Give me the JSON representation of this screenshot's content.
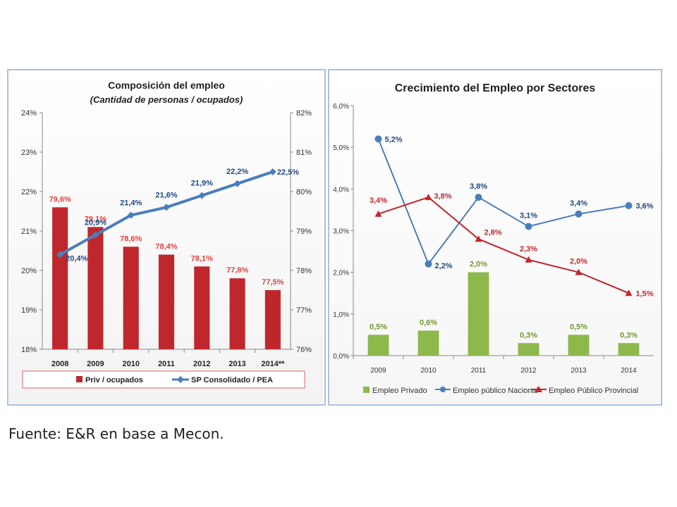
{
  "source_note": "Fuente: E&R en base a Mecon.",
  "colors": {
    "red": "#c0272d",
    "blue": "#4a7ebb",
    "blue_dark": "#1f497d",
    "green": "#8db84a",
    "dark_red": "#c0272d"
  },
  "chart_data": [
    {
      "type": "bar",
      "title": "Composición del empleo",
      "subtitle": "(Cantidad de personas / ocupados)",
      "categories": [
        "2008",
        "2009",
        "2010",
        "2011",
        "2012",
        "2013",
        "2014**"
      ],
      "y_left_ticks": [
        "18%",
        "19%",
        "20%",
        "21%",
        "22%",
        "23%",
        "24%"
      ],
      "y_left_range": [
        18,
        24
      ],
      "y_right_ticks": [
        "76%",
        "77%",
        "78%",
        "79%",
        "80%",
        "81%",
        "82%"
      ],
      "y_right_range": [
        76,
        82
      ],
      "series": [
        {
          "name": "Priv / ocupados",
          "type": "bar",
          "axis": "right",
          "color": "#c0272d",
          "values": [
            79.6,
            79.1,
            78.6,
            78.4,
            78.1,
            77.8,
            77.5
          ],
          "labels": [
            "79,6%",
            "79,1%",
            "78,6%",
            "78,4%",
            "78,1%",
            "77,8%",
            "77,5%"
          ]
        },
        {
          "name": "SP Consolidado  / PEA",
          "type": "line",
          "axis": "left",
          "color": "#4a7ebb",
          "values": [
            20.4,
            20.9,
            21.4,
            21.6,
            21.9,
            22.2,
            22.5
          ],
          "labels": [
            "20,4%",
            "20,9%",
            "21,4%",
            "21,6%",
            "21,9%",
            "22,2%",
            "22,5%"
          ]
        }
      ],
      "legend_position": "bottom"
    },
    {
      "type": "bar",
      "title": "Crecimiento del Empleo por Sectores",
      "categories": [
        "2009",
        "2010",
        "2011",
        "2012",
        "2013",
        "2014"
      ],
      "y_ticks": [
        "0,0%",
        "1,0%",
        "2,0%",
        "3,0%",
        "4,0%",
        "5,0%",
        "6,0%"
      ],
      "y_range": [
        0,
        6
      ],
      "series": [
        {
          "name": "Empleo Privado",
          "type": "bar",
          "color": "#8db84a",
          "values": [
            0.5,
            0.6,
            2.0,
            0.3,
            0.5,
            0.3
          ],
          "labels": [
            "0,5%",
            "0,6%",
            "2,0%",
            "0,3%",
            "0,5%",
            "0,3%"
          ]
        },
        {
          "name": "Empleo público Nacional",
          "type": "line",
          "marker": "circle",
          "color": "#4a7ebb",
          "values": [
            5.2,
            2.2,
            3.8,
            3.1,
            3.4,
            3.6
          ],
          "labels": [
            "5,2%",
            "2,2%",
            "3,8%",
            "3,1%",
            "3,4%",
            "3,6%"
          ]
        },
        {
          "name": "Empleo Público Provincial",
          "type": "line",
          "marker": "triangle",
          "color": "#c0272d",
          "values": [
            3.4,
            3.8,
            2.8,
            2.3,
            2.0,
            1.5
          ],
          "labels": [
            "3,4%",
            "3,8%",
            "2,8%",
            "2,3%",
            "2,0%",
            "1,5%"
          ]
        }
      ],
      "legend_position": "bottom"
    }
  ]
}
